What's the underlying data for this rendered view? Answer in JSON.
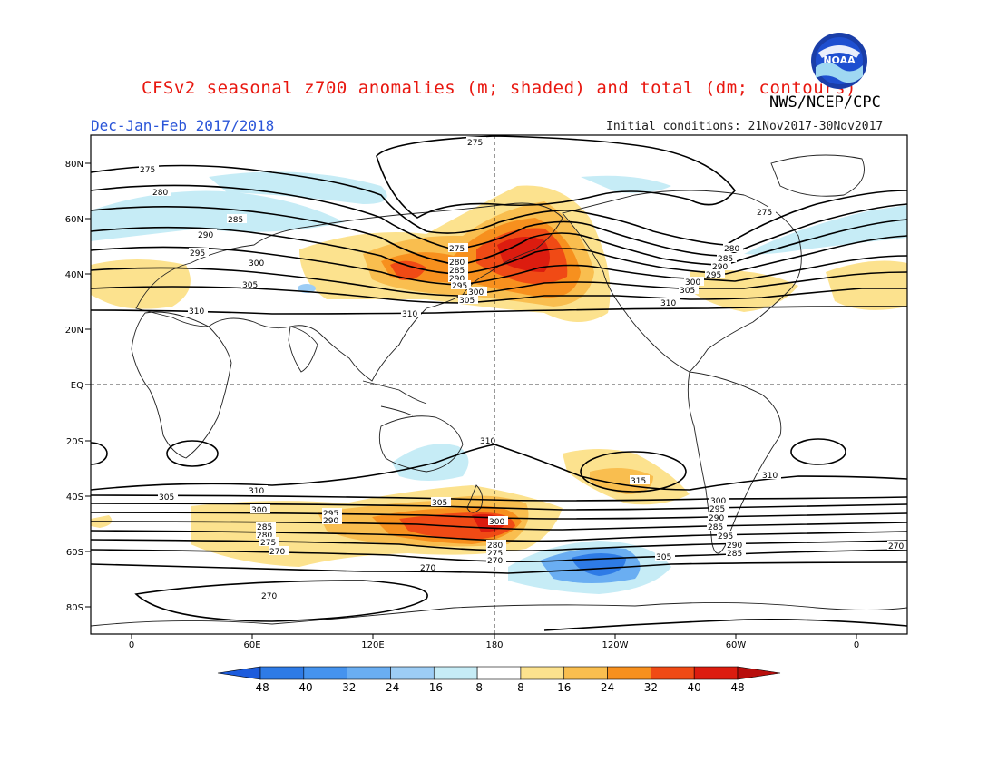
{
  "title": "CFSv2 seasonal z700 anomalies (m; shaded) and total (dm; contours)",
  "agency": "NWS/NCEP/CPC",
  "season": "Dec-Jan-Feb 2017/2018",
  "initial_conditions": "Initial conditions: 21Nov2017-30Nov2017",
  "logo_text": "NOAA",
  "map": {
    "lat_ticks": [
      "80N",
      "60N",
      "40N",
      "20N",
      "EQ",
      "20S",
      "40S",
      "60S",
      "80S"
    ],
    "lon_ticks": [
      "0",
      "60E",
      "120E",
      "180",
      "120W",
      "60W",
      "0"
    ],
    "contour_labels": [
      "275",
      "275",
      "280",
      "285",
      "290",
      "295",
      "300",
      "305",
      "310",
      "275",
      "280",
      "285",
      "290",
      "295",
      "300",
      "305",
      "310",
      "275",
      "280",
      "285",
      "290",
      "295",
      "300",
      "305",
      "310",
      "275",
      "280",
      "285",
      "290",
      "300",
      "305",
      "310",
      "310",
      "310",
      "315",
      "305",
      "300",
      "295",
      "290",
      "285",
      "280",
      "275",
      "270",
      "305",
      "300",
      "295",
      "290",
      "285",
      "280",
      "275",
      "270",
      "305",
      "300",
      "295",
      "290",
      "285",
      "280",
      "275",
      "270",
      "270",
      "270",
      "270"
    ]
  },
  "colorbar": {
    "labels": [
      "-48",
      "-40",
      "-32",
      "-24",
      "-16",
      "-8",
      "8",
      "16",
      "24",
      "32",
      "40",
      "48"
    ],
    "colors": [
      "#1c5bdc",
      "#2e7be6",
      "#4593ee",
      "#6aaef2",
      "#9dcdf5",
      "#c6ecf6",
      "#ffffff",
      "#fce28e",
      "#f9be4f",
      "#f7901e",
      "#f04a15",
      "#dc1c0f",
      "#b80e0c"
    ]
  },
  "colors": {
    "title": "#e8170f",
    "season": "#2a55d8",
    "positive_light": "#fce28e",
    "positive_mid": "#f9be4f",
    "positive_strong": "#f7901e",
    "positive_max": "#dc1c0f",
    "negative_light": "#c6ecf6",
    "negative_mid": "#6aaef2",
    "negative_max": "#2e7be6"
  }
}
